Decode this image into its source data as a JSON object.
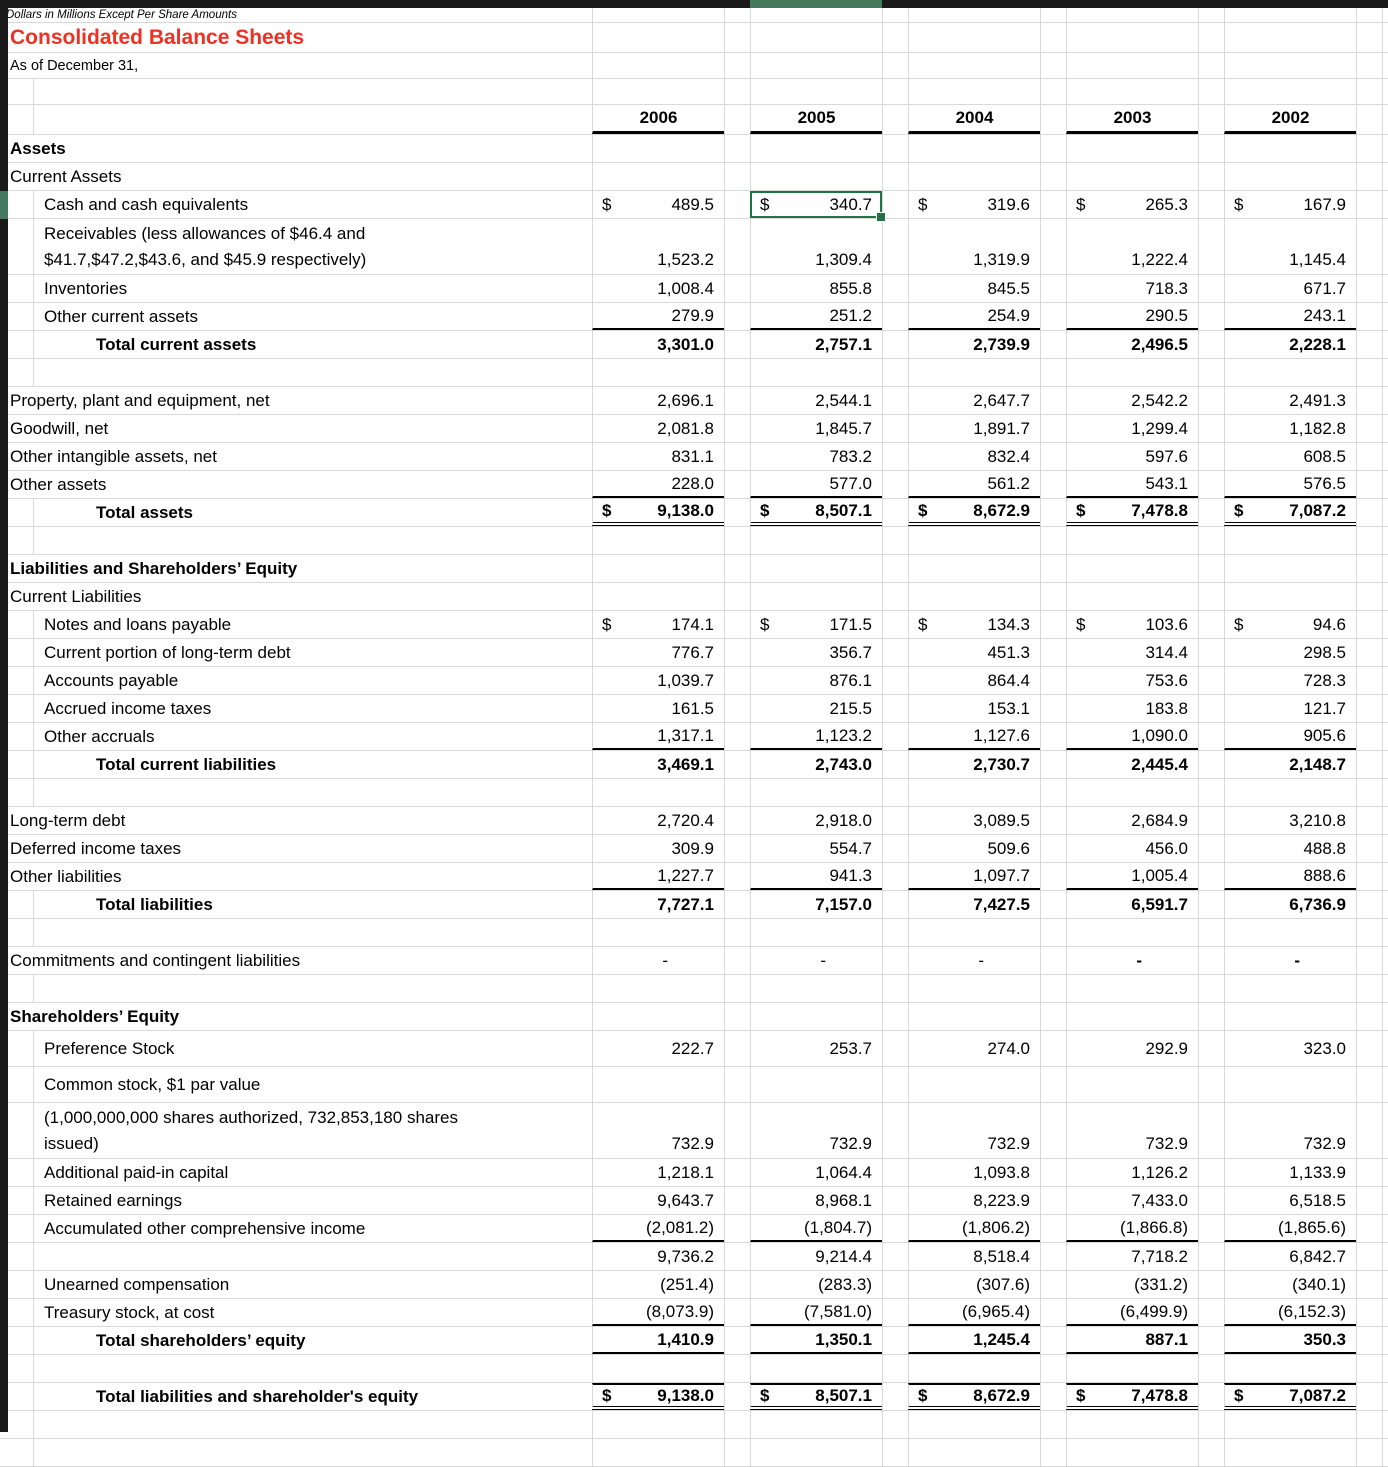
{
  "sheet": {
    "note": "Dollars in Millions Except Per Share Amounts",
    "title": "Consolidated Balance Sheets",
    "subtitle": "As of December 31,",
    "years": [
      "2006",
      "2005",
      "2004",
      "2003",
      "2002"
    ],
    "selection": {
      "row_id": "cash",
      "year": "2005",
      "value": "340.7"
    },
    "colors": {
      "grid": "#d9d9d9",
      "sel": "#217346",
      "red": "#ee3124",
      "bar": "#1a1a1a",
      "selbar": "#44795d"
    },
    "rows": [
      {
        "id": "blank-top",
        "kind": "blank"
      },
      {
        "id": "years",
        "kind": "years"
      },
      {
        "id": "assets-header",
        "kind": "section",
        "label": "Assets"
      },
      {
        "id": "current-assets",
        "kind": "l0",
        "label": "Current Assets"
      },
      {
        "id": "cash",
        "kind": "item",
        "label": "Cash and cash equivalents",
        "dollar": true,
        "values": [
          "489.5",
          "340.7",
          "319.6",
          "265.3",
          "167.9"
        ]
      },
      {
        "id": "receivables",
        "kind": "wrap",
        "label": [
          "Receivables (less allowances of $46.4 and",
          "$41.7,$47.2,$43.6, and $45.9 respectively)"
        ],
        "values": [
          "1,523.2",
          "1,309.4",
          "1,319.9",
          "1,222.4",
          "1,145.4"
        ]
      },
      {
        "id": "inventories",
        "kind": "item",
        "label": "Inventories",
        "values": [
          "1,008.4",
          "855.8",
          "845.5",
          "718.3",
          "671.7"
        ]
      },
      {
        "id": "other-current-assets",
        "kind": "item",
        "label": "Other current assets",
        "underline": true,
        "values": [
          "279.9",
          "251.2",
          "254.9",
          "290.5",
          "243.1"
        ]
      },
      {
        "id": "total-current-assets",
        "kind": "total",
        "label": "Total current assets",
        "values": [
          "3,301.0",
          "2,757.1",
          "2,739.9",
          "2,496.5",
          "2,228.1"
        ]
      },
      {
        "id": "spacer-1",
        "kind": "spacer"
      },
      {
        "id": "ppe",
        "kind": "l0",
        "label": "Property, plant and equipment, net",
        "values": [
          "2,696.1",
          "2,544.1",
          "2,647.7",
          "2,542.2",
          "2,491.3"
        ]
      },
      {
        "id": "goodwill",
        "kind": "l0",
        "label": "Goodwill, net",
        "values": [
          "2,081.8",
          "1,845.7",
          "1,891.7",
          "1,299.4",
          "1,182.8"
        ]
      },
      {
        "id": "other-intangibles",
        "kind": "l0",
        "label": "Other intangible assets, net",
        "values": [
          "831.1",
          "783.2",
          "832.4",
          "597.6",
          "608.5"
        ]
      },
      {
        "id": "other-assets",
        "kind": "l0",
        "label": "Other assets",
        "underline": true,
        "values": [
          "228.0",
          "577.0",
          "561.2",
          "543.1",
          "576.5"
        ]
      },
      {
        "id": "total-assets",
        "kind": "total",
        "label": "Total assets",
        "dollar": true,
        "double": true,
        "values": [
          "9,138.0",
          "8,507.1",
          "8,672.9",
          "7,478.8",
          "7,087.2"
        ]
      },
      {
        "id": "spacer-2",
        "kind": "spacer"
      },
      {
        "id": "liabilities-header",
        "kind": "section",
        "label": "Liabilities and Shareholders’ Equity"
      },
      {
        "id": "current-liabilities",
        "kind": "l0",
        "label": "Current Liabilities"
      },
      {
        "id": "notes-loans-payable",
        "kind": "item",
        "label": "Notes and loans payable",
        "dollar": true,
        "values": [
          "174.1",
          "171.5",
          "134.3",
          "103.6",
          "94.6"
        ]
      },
      {
        "id": "current-portion-ltd",
        "kind": "item",
        "label": "Current portion of long-term debt",
        "values": [
          "776.7",
          "356.7",
          "451.3",
          "314.4",
          "298.5"
        ]
      },
      {
        "id": "accounts-payable",
        "kind": "item",
        "label": "Accounts payable",
        "values": [
          "1,039.7",
          "876.1",
          "864.4",
          "753.6",
          "728.3"
        ]
      },
      {
        "id": "accrued-income-taxes",
        "kind": "item",
        "label": "Accrued income taxes",
        "values": [
          "161.5",
          "215.5",
          "153.1",
          "183.8",
          "121.7"
        ]
      },
      {
        "id": "other-accruals",
        "kind": "item",
        "label": "Other accruals",
        "underline": true,
        "values": [
          "1,317.1",
          "1,123.2",
          "1,127.6",
          "1,090.0",
          "905.6"
        ]
      },
      {
        "id": "total-current-liabilities",
        "kind": "total",
        "label": "Total current liabilities",
        "values": [
          "3,469.1",
          "2,743.0",
          "2,730.7",
          "2,445.4",
          "2,148.7"
        ]
      },
      {
        "id": "spacer-3",
        "kind": "spacer"
      },
      {
        "id": "long-term-debt",
        "kind": "l0",
        "label": "Long-term debt",
        "values": [
          "2,720.4",
          "2,918.0",
          "3,089.5",
          "2,684.9",
          "3,210.8"
        ]
      },
      {
        "id": "deferred-income-taxes",
        "kind": "l0",
        "label": "Deferred income taxes",
        "values": [
          "309.9",
          "554.7",
          "509.6",
          "456.0",
          "488.8"
        ]
      },
      {
        "id": "other-liabilities",
        "kind": "l0",
        "label": "Other liabilities",
        "underline": true,
        "values": [
          "1,227.7",
          "941.3",
          "1,097.7",
          "1,005.4",
          "888.6"
        ]
      },
      {
        "id": "total-liabilities",
        "kind": "total",
        "label": "Total liabilities",
        "values": [
          "7,727.1",
          "7,157.0",
          "7,427.5",
          "6,591.7",
          "6,736.9"
        ]
      },
      {
        "id": "spacer-4",
        "kind": "spacer"
      },
      {
        "id": "commitments",
        "kind": "dash",
        "label": "Commitments and contingent liabilities",
        "values": [
          "-",
          "-",
          "-",
          "-",
          "-"
        ],
        "bold_values": [
          false,
          false,
          false,
          true,
          true
        ]
      },
      {
        "id": "spacer-5",
        "kind": "spacer"
      },
      {
        "id": "shareholders-equity-header",
        "kind": "section",
        "label": "Shareholders’ Equity"
      },
      {
        "id": "preference-stock",
        "kind": "tall",
        "label": "Preference Stock",
        "values": [
          "222.7",
          "253.7",
          "274.0",
          "292.9",
          "323.0"
        ]
      },
      {
        "id": "common-stock",
        "kind": "tall",
        "label": "Common stock, $1 par value"
      },
      {
        "id": "shares-authorized",
        "kind": "wrap",
        "label": [
          "(1,000,000,000 shares authorized, 732,853,180 shares",
          "issued)"
        ],
        "values": [
          "732.9",
          "732.9",
          "732.9",
          "732.9",
          "732.9"
        ]
      },
      {
        "id": "additional-paid-in-capital",
        "kind": "item",
        "label": "Additional paid-in capital",
        "values": [
          "1,218.1",
          "1,064.4",
          "1,093.8",
          "1,126.2",
          "1,133.9"
        ]
      },
      {
        "id": "retained-earnings",
        "kind": "item",
        "label": "Retained earnings",
        "values": [
          "9,643.7",
          "8,968.1",
          "8,223.9",
          "7,433.0",
          "6,518.5"
        ]
      },
      {
        "id": "accumulated-oci",
        "kind": "item",
        "label": "Accumulated other comprehensive income",
        "underline": true,
        "values": [
          "(2,081.2)",
          "(1,804.7)",
          "(1,806.2)",
          "(1,866.8)",
          "(1,865.6)"
        ]
      },
      {
        "id": "equity-subtotal",
        "kind": "item",
        "label": "",
        "values": [
          "9,736.2",
          "9,214.4",
          "8,518.4",
          "7,718.2",
          "6,842.7"
        ]
      },
      {
        "id": "unearned-compensation",
        "kind": "item",
        "label": "Unearned compensation",
        "values": [
          "(251.4)",
          "(283.3)",
          "(307.6)",
          "(331.2)",
          "(340.1)"
        ]
      },
      {
        "id": "treasury-stock",
        "kind": "item",
        "label": "Treasury stock, at cost",
        "underline": true,
        "values": [
          "(8,073.9)",
          "(7,581.0)",
          "(6,965.4)",
          "(6,499.9)",
          "(6,152.3)"
        ]
      },
      {
        "id": "total-shareholders-equity",
        "kind": "total",
        "label": "Total shareholders’ equity",
        "underline": true,
        "values": [
          "1,410.9",
          "1,350.1",
          "1,245.4",
          "887.1",
          "350.3"
        ]
      },
      {
        "id": "spacer-6",
        "kind": "spacer"
      },
      {
        "id": "total-liabilities-equity",
        "kind": "grand",
        "label": "Total liabilities and shareholder's equity",
        "dollar": true,
        "topline": true,
        "double": true,
        "values": [
          "9,138.0",
          "8,507.1",
          "8,672.9",
          "7,478.8",
          "7,087.2"
        ]
      },
      {
        "id": "spacer-7",
        "kind": "spacer"
      },
      {
        "id": "spacer-8",
        "kind": "spacer"
      }
    ]
  }
}
